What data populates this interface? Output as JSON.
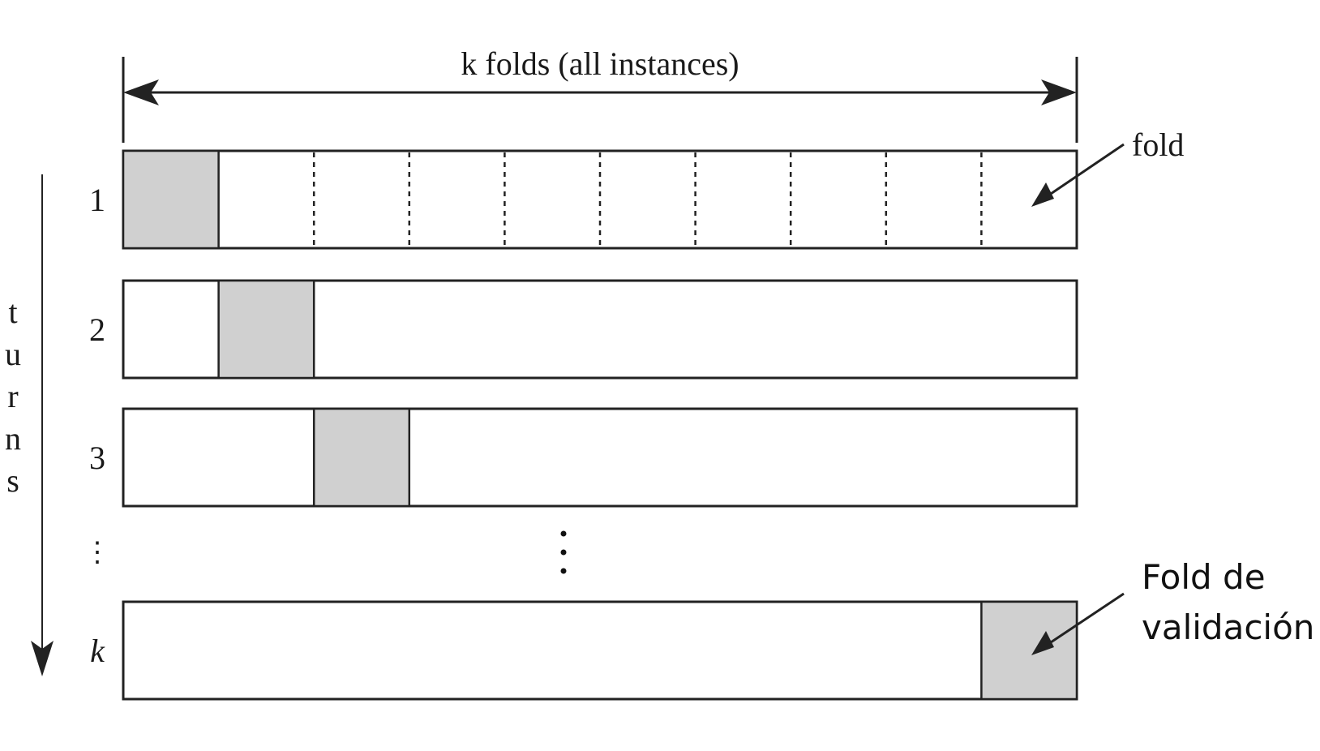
{
  "title": "k folds (all instances)",
  "fold_label": "fold",
  "validation_label": [
    "Fold de",
    "validación"
  ],
  "vertical_label_letters": [
    "t",
    "u",
    "r",
    "n",
    "s"
  ],
  "row_labels": [
    "1",
    "2",
    "3",
    "k"
  ],
  "vertical_ellipsis": "⋮",
  "folds_count": 10,
  "rows": [
    {
      "label": "1",
      "validation_fold": 1,
      "show_fold_dividers": true
    },
    {
      "label": "2",
      "validation_fold": 2,
      "show_fold_dividers": false
    },
    {
      "label": "3",
      "validation_fold": 3,
      "show_fold_dividers": false
    },
    {
      "label": "k",
      "validation_fold": 10,
      "show_fold_dividers": false
    }
  ],
  "colors": {
    "validation_fill": "#d0d0d0",
    "stroke": "#222222",
    "background": "#ffffff"
  }
}
